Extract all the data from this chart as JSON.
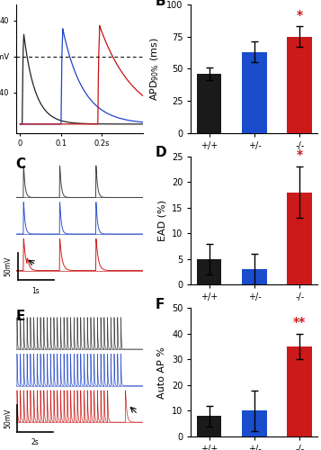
{
  "panel_B": {
    "categories": [
      "+/+",
      "+/-",
      "-/-"
    ],
    "values": [
      46,
      63,
      75
    ],
    "errors": [
      5,
      8,
      8
    ],
    "colors": [
      "#1a1a1a",
      "#1a4dcc",
      "#cc1a1a"
    ],
    "ylabel": "APD$_{90\\%}$ (ms)",
    "ylim": [
      0,
      100
    ],
    "yticks": [
      0,
      25,
      50,
      75,
      100
    ],
    "title": "B",
    "sig_label": "*",
    "sig_color": "#cc1a1a",
    "sig_idx": 2
  },
  "panel_D": {
    "categories": [
      "+/+",
      "+/-",
      "-/-"
    ],
    "values": [
      5,
      3,
      18
    ],
    "errors": [
      3,
      3,
      5
    ],
    "colors": [
      "#1a1a1a",
      "#1a4dcc",
      "#cc1a1a"
    ],
    "ylabel": "EAD (%)",
    "ylim": [
      0,
      25
    ],
    "yticks": [
      0,
      5,
      10,
      15,
      20,
      25
    ],
    "title": "D",
    "sig_label": "*",
    "sig_color": "#cc1a1a",
    "sig_idx": 2
  },
  "panel_F": {
    "categories": [
      "+/+",
      "+/-",
      "-/-"
    ],
    "values": [
      8,
      10,
      35
    ],
    "errors": [
      4,
      8,
      5
    ],
    "colors": [
      "#1a1a1a",
      "#1a4dcc",
      "#cc1a1a"
    ],
    "ylabel": "Auto AP %",
    "ylim": [
      0,
      50
    ],
    "yticks": [
      0,
      10,
      20,
      30,
      40,
      50
    ],
    "title": "F",
    "sig_label": "**",
    "sig_color": "#cc1a1a",
    "sig_idx": 2
  },
  "bg_color": "#ffffff",
  "bar_width": 0.55,
  "label_fontsize": 8,
  "tick_fontsize": 7,
  "panel_label_fontsize": 11
}
